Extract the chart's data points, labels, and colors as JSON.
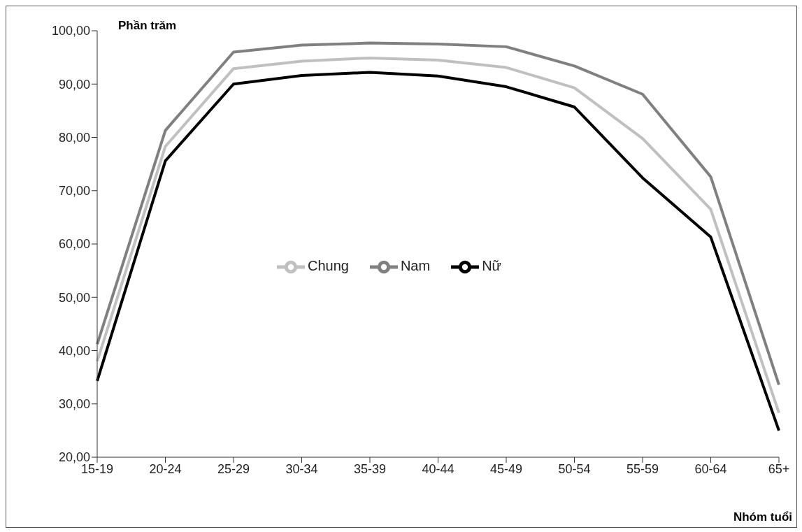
{
  "chart_data": {
    "type": "line",
    "ylabel": "Phần trăm",
    "xlabel": "Nhóm tuổi",
    "categories": [
      "15-19",
      "20-24",
      "25-29",
      "30-34",
      "35-39",
      "40-44",
      "45-49",
      "50-54",
      "55-59",
      "60-64",
      "65+"
    ],
    "series": [
      {
        "name": "Nam",
        "color": "#808080",
        "values": [
          41.2,
          81.3,
          96.0,
          97.3,
          97.7,
          97.5,
          97.0,
          93.4,
          88.1,
          72.6,
          33.6
        ]
      },
      {
        "name": "Nữ",
        "color": "#000000",
        "values": [
          34.3,
          75.6,
          90.0,
          91.6,
          92.2,
          91.5,
          89.5,
          85.7,
          72.4,
          61.3,
          25.0
        ]
      },
      {
        "name": "Chung",
        "color": "#c0c0c0",
        "values": [
          38.0,
          78.3,
          92.9,
          94.3,
          94.9,
          94.5,
          93.1,
          89.3,
          79.8,
          66.5,
          28.3
        ]
      }
    ],
    "ylim": [
      20,
      100
    ],
    "yticks": [
      {
        "value": 20,
        "label": "20,00"
      },
      {
        "value": 30,
        "label": "30,00"
      },
      {
        "value": 40,
        "label": "40,00"
      },
      {
        "value": 50,
        "label": "50,00"
      },
      {
        "value": 60,
        "label": "60,00"
      },
      {
        "value": 70,
        "label": "70,00"
      },
      {
        "value": 80,
        "label": "80,00"
      },
      {
        "value": 90,
        "label": "90,00"
      },
      {
        "value": 100,
        "label": "100,00"
      }
    ],
    "grid": false,
    "legend": "center",
    "marker": "none",
    "line_style": "solid"
  }
}
